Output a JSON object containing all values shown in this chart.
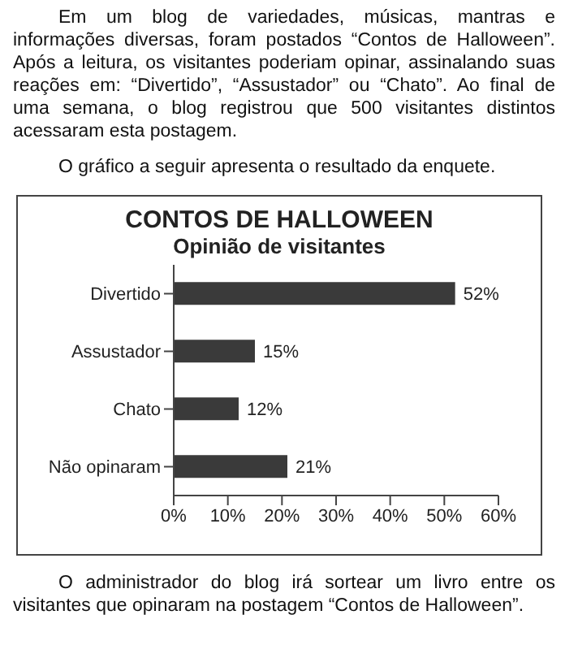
{
  "chart_data": {
    "type": "bar",
    "orientation": "horizontal",
    "title": "CONTOS DE HALLOWEEN",
    "subtitle": "Opinião de visitantes",
    "annotations": [
      "Em um blog de variedades, músicas, mantras e informações diversas, foram postados “Contos de Halloween”. Após a leitura, os visitantes poderiam opinar, assinalando suas reações em: “Divertido”, “Assustador” ou “Chato”. Ao final de uma semana, o blog registrou que 500 visitantes distintos acessaram esta postagem.",
      "O gráfico a seguir apresenta o resultado da enquete.",
      "O administrador do blog irá sortear um livro entre os visitantes que opinaram na postagem “Contos de Halloween”."
    ],
    "categories": [
      "Divertido",
      "Assustador",
      "Chato",
      "Não opinaram"
    ],
    "values": [
      52,
      15,
      12,
      21
    ],
    "value_labels": [
      "52%",
      "15%",
      "12%",
      "21%"
    ],
    "color": "#3a3a3a",
    "xlim": [
      0,
      60
    ],
    "xticks": [
      {
        "value": 0,
        "label": "0%"
      },
      {
        "value": 10,
        "label": "10%"
      },
      {
        "value": 20,
        "label": "20%"
      },
      {
        "value": 30,
        "label": "30%"
      },
      {
        "value": 40,
        "label": "40%"
      },
      {
        "value": 50,
        "label": "50%"
      },
      {
        "value": 60,
        "label": "60%"
      }
    ],
    "grid": false
  }
}
